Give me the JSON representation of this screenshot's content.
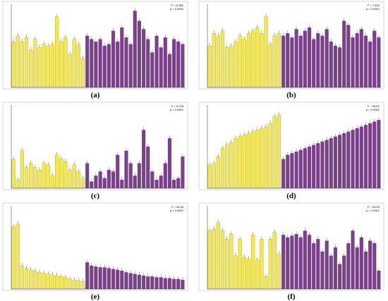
{
  "chart_data": [
    {
      "type": "bar",
      "panel": "(a)",
      "stats": [
        "F = 6.352",
        "p < 0.0001"
      ],
      "ylim": [
        0,
        100
      ],
      "series": [
        {
          "color": "#f5e94a",
          "values": [
            55,
            62,
            55,
            60,
            45,
            58,
            48,
            52,
            50,
            52,
            85,
            55,
            60,
            40,
            58,
            52,
            35
          ]
        },
        {
          "color": "#7b3f8c",
          "values": [
            62,
            58,
            55,
            58,
            50,
            52,
            68,
            55,
            72,
            60,
            52,
            92,
            80,
            70,
            58,
            42,
            62,
            48,
            60,
            40,
            58,
            55,
            52
          ]
        }
      ]
    },
    {
      "type": "bar",
      "panel": "(b)",
      "stats": [
        "F = 7.876",
        "p < 0.0001"
      ],
      "ylim": [
        0,
        100
      ],
      "series": [
        {
          "color": "#f5e94a",
          "values": [
            50,
            65,
            62,
            68,
            48,
            50,
            55,
            62,
            58,
            65,
            68,
            72,
            65,
            85,
            52,
            62,
            65
          ]
        },
        {
          "color": "#7b3f8c",
          "values": [
            62,
            65,
            60,
            70,
            62,
            68,
            72,
            58,
            65,
            62,
            70,
            55,
            50,
            48,
            80,
            75,
            60,
            65,
            70,
            62,
            55,
            68,
            60
          ]
        }
      ]
    },
    {
      "type": "bar",
      "panel": "(c)",
      "stats": [
        "F = 5.218",
        "p < 0.0001"
      ],
      "ylim": [
        0,
        100
      ],
      "series": [
        {
          "color": "#f5e94a",
          "values": [
            35,
            10,
            45,
            25,
            30,
            25,
            22,
            30,
            28,
            15,
            40,
            35,
            32,
            22,
            28,
            20,
            12
          ]
        },
        {
          "color": "#7b3f8c",
          "values": [
            30,
            8,
            15,
            20,
            12,
            22,
            20,
            40,
            10,
            45,
            30,
            15,
            30,
            70,
            50,
            20,
            10,
            15,
            30,
            60,
            10,
            12,
            38
          ]
        }
      ]
    },
    {
      "type": "bar",
      "panel": "(d)",
      "stats": [
        "F = 96.81",
        "p < 0.0001"
      ],
      "ylim": [
        0,
        100
      ],
      "series": [
        {
          "color": "#f5e94a",
          "values": [
            28,
            30,
            38,
            48,
            52,
            55,
            60,
            62,
            64,
            66,
            68,
            70,
            72,
            74,
            78,
            86,
            88
          ]
        },
        {
          "color": "#7b3f8c",
          "values": [
            35,
            40,
            42,
            44,
            46,
            48,
            50,
            52,
            54,
            56,
            58,
            60,
            62,
            64,
            66,
            68,
            70,
            72,
            74,
            76,
            78,
            80,
            82
          ]
        }
      ]
    },
    {
      "type": "bar",
      "panel": "(e)",
      "stats": [
        "F = 94.65",
        "p < 0.0001"
      ],
      "ylim": [
        0,
        100
      ],
      "series": [
        {
          "color": "#f5e94a",
          "values": [
            75,
            78,
            28,
            25,
            23,
            22,
            20,
            19,
            18,
            17,
            16,
            15,
            14,
            12,
            11,
            10,
            9
          ]
        },
        {
          "color": "#7b3f8c",
          "values": [
            32,
            28,
            27,
            26,
            26,
            25,
            24,
            23,
            22,
            20,
            19,
            18,
            17,
            16,
            15,
            15,
            14,
            14,
            13,
            13,
            12,
            12,
            11
          ]
        }
      ]
    },
    {
      "type": "bar",
      "panel": "(f)",
      "stats": [
        "F = 26.59",
        "p < 0.0001"
      ],
      "ylim": [
        0,
        100
      ],
      "series": [
        {
          "color": "#f5e94a",
          "values": [
            70,
            72,
            80,
            70,
            60,
            66,
            40,
            60,
            38,
            36,
            65,
            35,
            60,
            15,
            60,
            68,
            42
          ]
        },
        {
          "color": "#7b3f8c",
          "values": [
            65,
            62,
            64,
            66,
            62,
            70,
            65,
            55,
            60,
            45,
            58,
            40,
            50,
            30,
            40,
            55,
            70,
            50,
            62,
            45,
            58,
            55,
            22
          ]
        }
      ]
    }
  ]
}
